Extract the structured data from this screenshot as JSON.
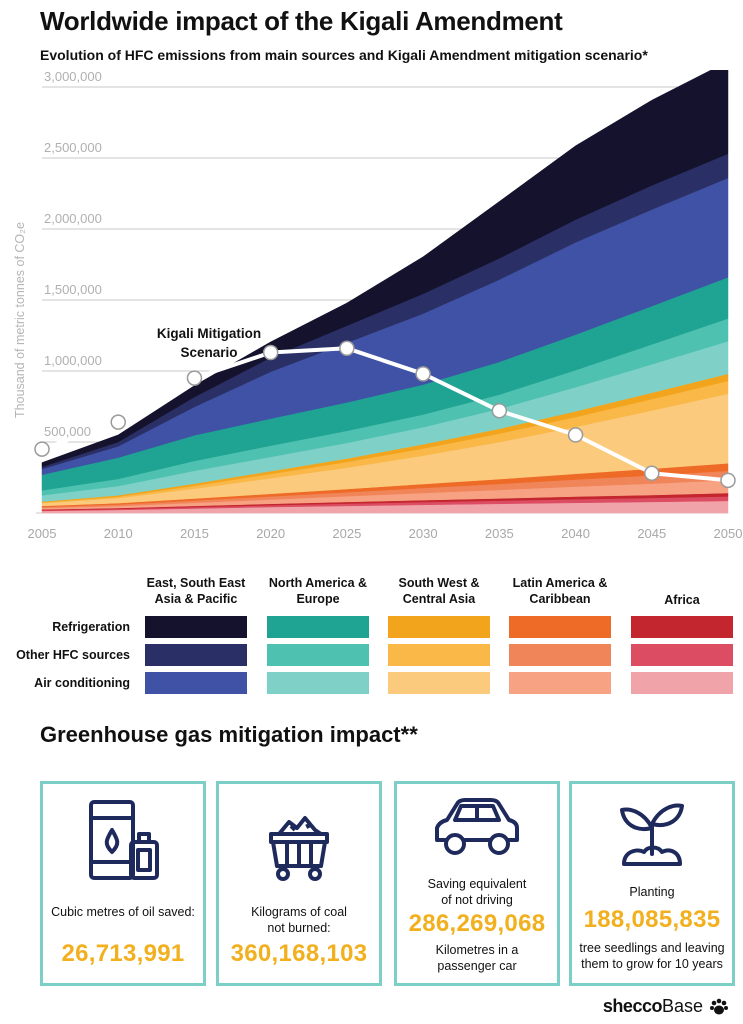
{
  "header": {
    "title": "Worldwide impact of the Kigali Amendment",
    "subtitle": "Evolution of HFC emissions from main sources and Kigali Amendment mitigation scenario*"
  },
  "chart_data": {
    "type": "area",
    "stacked": true,
    "ylabel": "Thousand of metric tonnes of CO₂e",
    "ylim": [
      0,
      3000000
    ],
    "yticks": [
      "3,000,000",
      "2,500,000",
      "2,000,000",
      "1,500,000",
      "1,000,000",
      "500,000"
    ],
    "ytick_values": [
      3000000,
      2500000,
      2000000,
      1500000,
      1000000,
      500000
    ],
    "x": [
      "2005",
      "2010",
      "2015",
      "2020",
      "2025",
      "2030",
      "2035",
      "2040",
      "2045",
      "2050"
    ],
    "grid": true,
    "series": [
      {
        "name": "Africa – Air conditioning",
        "color": "#f0a3a8",
        "values": [
          15000,
          22000,
          32000,
          42000,
          50000,
          58000,
          65000,
          72000,
          78000,
          85000
        ]
      },
      {
        "name": "Africa – Other HFC sources",
        "color": "#dc4c62",
        "values": [
          5000,
          7000,
          10000,
          13000,
          16000,
          19000,
          22000,
          25000,
          28000,
          32000
        ]
      },
      {
        "name": "Africa – Refrigeration",
        "color": "#c3262e",
        "values": [
          5000,
          6000,
          8000,
          10000,
          12000,
          14000,
          16000,
          19000,
          21000,
          24000
        ]
      },
      {
        "name": "Latin America & Caribbean – Air conditioning",
        "color": "#f7a283",
        "values": [
          10000,
          14000,
          22000,
          30000,
          40000,
          50000,
          60000,
          70000,
          80000,
          90000
        ]
      },
      {
        "name": "Latin America & Caribbean – Other HFC sources",
        "color": "#f1855a",
        "values": [
          8000,
          11000,
          16000,
          22000,
          28000,
          35000,
          42000,
          50000,
          58000,
          66000
        ]
      },
      {
        "name": "Latin America & Caribbean – Refrigeration",
        "color": "#ee6a27",
        "values": [
          7000,
          10000,
          14000,
          18000,
          23000,
          28000,
          34000,
          40000,
          47000,
          53000
        ]
      },
      {
        "name": "South West & Central Asia – Air conditioning",
        "color": "#fcca7c",
        "values": [
          20000,
          35000,
          70000,
          110000,
          150000,
          200000,
          260000,
          330000,
          410000,
          490000
        ]
      },
      {
        "name": "South West & Central Asia – Other HFC sources",
        "color": "#f9b848",
        "values": [
          5000,
          10000,
          20000,
          30000,
          40000,
          50000,
          60000,
          70000,
          80000,
          90000
        ]
      },
      {
        "name": "South West & Central Asia – Refrigeration",
        "color": "#f2a51c",
        "values": [
          5000,
          10000,
          15000,
          20000,
          25000,
          30000,
          35000,
          40000,
          45000,
          50000
        ]
      },
      {
        "name": "North America & Europe – Air conditioning",
        "color": "#7fd1c8",
        "values": [
          45000,
          65000,
          90000,
          100000,
          110000,
          120000,
          140000,
          170000,
          200000,
          230000
        ]
      },
      {
        "name": "North America & Europe – Other HFC sources",
        "color": "#4ec1b0",
        "values": [
          35000,
          50000,
          70000,
          80000,
          85000,
          90000,
          100000,
          120000,
          140000,
          160000
        ]
      },
      {
        "name": "North America & Europe – Refrigeration",
        "color": "#1fa392",
        "values": [
          110000,
          150000,
          180000,
          190000,
          200000,
          210000,
          230000,
          250000,
          270000,
          290000
        ]
      },
      {
        "name": "East, South East Asia & Pacific – Air conditioning",
        "color": "#3f52a5",
        "values": [
          40000,
          80000,
          200000,
          330000,
          420000,
          500000,
          580000,
          650000,
          680000,
          700000
        ]
      },
      {
        "name": "East, South East Asia & Pacific – Other HFC sources",
        "color": "#2a2f65",
        "values": [
          15000,
          30000,
          70000,
          100000,
          120000,
          140000,
          150000,
          160000,
          170000,
          170000
        ]
      },
      {
        "name": "East, South East Asia & Pacific – Refrigeration",
        "color": "#14122c",
        "values": [
          30000,
          50000,
          80000,
          110000,
          160000,
          260000,
          400000,
          520000,
          600000,
          650000
        ]
      }
    ],
    "mitigation": {
      "name": "Kigali Mitigation Scenario",
      "values": [
        450000,
        640000,
        950000,
        1130000,
        1160000,
        980000,
        720000,
        550000,
        280000,
        230000
      ]
    }
  },
  "legend": {
    "columns": [
      "East, South East Asia & Pacific",
      "North America & Europe",
      "South West & Central Asia",
      "Latin America & Caribbean",
      "Africa"
    ],
    "rows": [
      "Refrigeration",
      "Other HFC sources",
      "Air conditioning"
    ],
    "colors": [
      [
        "#14122c",
        "#1fa392",
        "#f2a51c",
        "#ee6a27",
        "#c3262e"
      ],
      [
        "#2a2f65",
        "#4ec1b0",
        "#f9b848",
        "#f1855a",
        "#dc4c62"
      ],
      [
        "#3f52a5",
        "#7fd1c8",
        "#fcca7c",
        "#f7a283",
        "#f0a3a8"
      ]
    ]
  },
  "impact": {
    "title": "Greenhouse gas mitigation impact**",
    "cards": [
      {
        "icon": "oil-barrel-icon",
        "pre": "Cubic metres of oil saved:",
        "value": "26,713,991",
        "post": ""
      },
      {
        "icon": "coal-cart-icon",
        "pre": "Kilograms of coal not burned:",
        "value": "360,168,103",
        "post": ""
      },
      {
        "icon": "car-icon",
        "pre": "Saving equivalent of not driving",
        "value": "286,269,068",
        "post": "Kilometres in a passenger car"
      },
      {
        "icon": "seedling-icon",
        "pre": "Planting",
        "value": "188,085,835",
        "post": "tree seedlings and leaving them to grow for 10 years"
      }
    ]
  },
  "footer": {
    "brand_bold": "shecco",
    "brand_regular": "Base"
  }
}
